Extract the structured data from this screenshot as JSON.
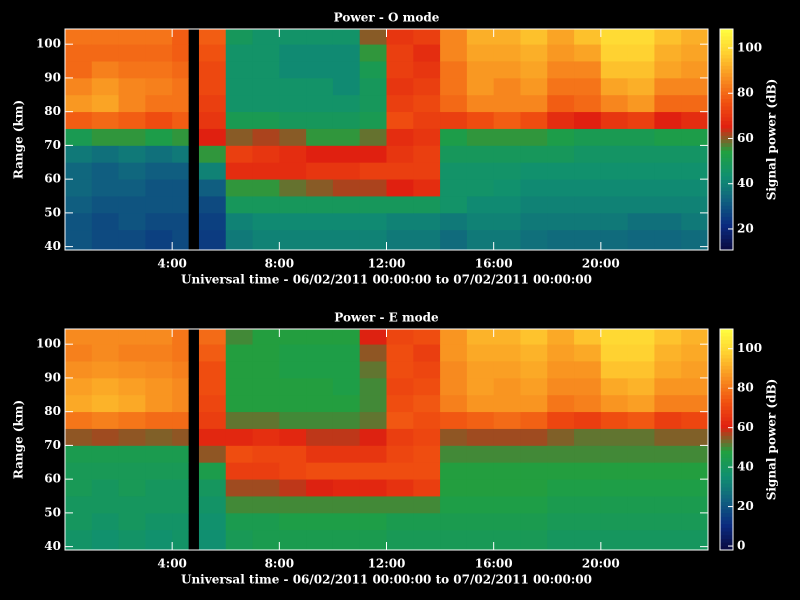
{
  "chart_data": [
    {
      "type": "heatmap",
      "title": "Power - O mode",
      "x_label": "Universal time - 06/02/2011 00:00:00 to 07/02/2011 00:00:00",
      "y_label": "Range (km)",
      "colorbar_label": "Signal power (dB)",
      "xlim": [
        0,
        24
      ],
      "ylim": [
        39,
        104.5
      ],
      "zlim": [
        10.7,
        108.4
      ],
      "xticks": [
        {
          "value": 4,
          "label": "4:00"
        },
        {
          "value": 8,
          "label": "8:00"
        },
        {
          "value": 12,
          "label": "12:00"
        },
        {
          "value": 16,
          "label": "16:00"
        },
        {
          "value": 20,
          "label": "20:00"
        }
      ],
      "yticks": [
        40,
        50,
        60,
        70,
        80,
        90,
        100
      ],
      "zticks": [
        20,
        40,
        60,
        80,
        100
      ],
      "colormap": [
        "#0a0a40",
        "#0a2a80",
        "#106080",
        "#109070",
        "#20a040",
        "#e02010",
        "#f05010",
        "#f89020",
        "#ffd030",
        "#ffff40"
      ],
      "x_edges": [
        0,
        1,
        2,
        3,
        4,
        4.6,
        5,
        6,
        7,
        8,
        9,
        10,
        11,
        12,
        13,
        14,
        15,
        16,
        17,
        18,
        19,
        20,
        21,
        22,
        23,
        24
      ],
      "y_edges": [
        39,
        45,
        50,
        55,
        60,
        65,
        70,
        75,
        80,
        85,
        90,
        95,
        100,
        104.5
      ],
      "z": [
        [
          30,
          30,
          32,
          34,
          34,
          38,
          50,
          78,
          88,
          85,
          80,
          80,
          82
        ],
        [
          28,
          28,
          30,
          32,
          32,
          36,
          55,
          80,
          90,
          88,
          84,
          80,
          82
        ],
        [
          28,
          30,
          30,
          32,
          34,
          38,
          55,
          78,
          85,
          85,
          82,
          80,
          82
        ],
        [
          26,
          28,
          30,
          30,
          32,
          36,
          52,
          75,
          82,
          84,
          82,
          80,
          82
        ],
        [
          28,
          28,
          30,
          30,
          32,
          38,
          55,
          78,
          82,
          82,
          80,
          78,
          78
        ],
        [
          null,
          null,
          null,
          null,
          null,
          null,
          null,
          null,
          null,
          null,
          null,
          null,
          null
        ],
        [
          25,
          26,
          28,
          32,
          40,
          55,
          65,
          70,
          72,
          74,
          74,
          76,
          78
        ],
        [
          38,
          40,
          48,
          55,
          68,
          72,
          60,
          50,
          45,
          45,
          45,
          45,
          48
        ],
        [
          40,
          42,
          48,
          55,
          68,
          70,
          62,
          50,
          45,
          45,
          45,
          45,
          45
        ],
        [
          40,
          42,
          48,
          58,
          68,
          68,
          60,
          48,
          45,
          45,
          42,
          42,
          45
        ],
        [
          40,
          42,
          48,
          60,
          70,
          65,
          55,
          48,
          45,
          45,
          42,
          42,
          45
        ],
        [
          40,
          42,
          48,
          62,
          70,
          65,
          55,
          48,
          45,
          42,
          42,
          42,
          45
        ],
        [
          40,
          42,
          48,
          62,
          72,
          65,
          58,
          50,
          48,
          48,
          50,
          55,
          60
        ],
        [
          38,
          40,
          48,
          65,
          72,
          70,
          68,
          75,
          72,
          70,
          72,
          72,
          70
        ],
        [
          38,
          40,
          48,
          68,
          72,
          72,
          70,
          72,
          74,
          72,
          70,
          68,
          72
        ],
        [
          35,
          38,
          45,
          45,
          45,
          48,
          52,
          72,
          80,
          82,
          82,
          85,
          85
        ],
        [
          38,
          40,
          42,
          45,
          45,
          48,
          55,
          75,
          85,
          88,
          88,
          90,
          92
        ],
        [
          38,
          40,
          42,
          44,
          45,
          48,
          55,
          78,
          85,
          85,
          88,
          90,
          92
        ],
        [
          36,
          38,
          40,
          42,
          44,
          48,
          55,
          75,
          85,
          88,
          90,
          92,
          95
        ],
        [
          35,
          38,
          40,
          42,
          44,
          48,
          52,
          68,
          78,
          82,
          85,
          88,
          90
        ],
        [
          35,
          38,
          40,
          42,
          44,
          46,
          50,
          65,
          80,
          82,
          85,
          90,
          95
        ],
        [
          35,
          38,
          40,
          42,
          44,
          46,
          50,
          70,
          85,
          90,
          95,
          98,
          100
        ],
        [
          34,
          36,
          40,
          42,
          44,
          46,
          50,
          72,
          88,
          92,
          95,
          98,
          100
        ],
        [
          34,
          36,
          40,
          42,
          44,
          46,
          52,
          65,
          80,
          85,
          90,
          92,
          95
        ],
        [
          35,
          38,
          40,
          42,
          44,
          46,
          52,
          68,
          80,
          85,
          88,
          90,
          92
        ]
      ]
    },
    {
      "type": "heatmap",
      "title": "Power - E mode",
      "x_label": "Universal time - 06/02/2011 00:00:00 to 07/02/2011 00:00:00",
      "y_label": "Range (km)",
      "colorbar_label": "Signal power (dB)",
      "xlim": [
        0,
        24
      ],
      "ylim": [
        39,
        104.5
      ],
      "zlim": [
        -2,
        110
      ],
      "xticks": [
        {
          "value": 4,
          "label": "4:00"
        },
        {
          "value": 8,
          "label": "8:00"
        },
        {
          "value": 12,
          "label": "12:00"
        },
        {
          "value": 16,
          "label": "16:00"
        },
        {
          "value": 20,
          "label": "20:00"
        }
      ],
      "yticks": [
        40,
        50,
        60,
        70,
        80,
        90,
        100
      ],
      "zticks": [
        0,
        20,
        40,
        60,
        80,
        100
      ],
      "colormap": [
        "#0a0a40",
        "#0a2a80",
        "#106080",
        "#109070",
        "#20a040",
        "#e02010",
        "#f05010",
        "#f89020",
        "#ffd030",
        "#ffff40"
      ],
      "x_edges": [
        0,
        1,
        2,
        3,
        4,
        4.6,
        5,
        6,
        7,
        8,
        9,
        10,
        11,
        12,
        13,
        14,
        15,
        16,
        17,
        18,
        19,
        20,
        21,
        22,
        23,
        24
      ],
      "y_edges": [
        39,
        45,
        50,
        55,
        60,
        65,
        70,
        75,
        80,
        85,
        90,
        95,
        100,
        104.5
      ],
      "z": [
        [
          38,
          40,
          40,
          42,
          42,
          44,
          55,
          80,
          90,
          88,
          85,
          82,
          84
        ],
        [
          36,
          38,
          40,
          40,
          42,
          44,
          56,
          82,
          92,
          90,
          86,
          84,
          84
        ],
        [
          38,
          40,
          40,
          42,
          42,
          44,
          55,
          80,
          90,
          88,
          85,
          82,
          84
        ],
        [
          36,
          38,
          40,
          40,
          42,
          44,
          54,
          78,
          86,
          86,
          84,
          82,
          84
        ],
        [
          38,
          38,
          40,
          40,
          42,
          44,
          55,
          78,
          84,
          84,
          82,
          80,
          80
        ],
        [
          null,
          null,
          null,
          null,
          null,
          null,
          null,
          null,
          null,
          null,
          null,
          null,
          null
        ],
        [
          35,
          36,
          38,
          40,
          45,
          55,
          62,
          68,
          70,
          72,
          72,
          75,
          78
        ],
        [
          42,
          44,
          50,
          56,
          68,
          72,
          62,
          52,
          48,
          48,
          48,
          48,
          50
        ],
        [
          44,
          44,
          50,
          56,
          68,
          70,
          64,
          52,
          48,
          48,
          48,
          48,
          48
        ],
        [
          44,
          46,
          50,
          58,
          70,
          70,
          62,
          50,
          48,
          48,
          46,
          46,
          48
        ],
        [
          44,
          46,
          50,
          60,
          72,
          66,
          58,
          50,
          48,
          48,
          46,
          46,
          48
        ],
        [
          44,
          46,
          50,
          62,
          72,
          66,
          58,
          50,
          48,
          46,
          46,
          46,
          48
        ],
        [
          44,
          46,
          50,
          62,
          72,
          66,
          60,
          52,
          50,
          50,
          52,
          55,
          60
        ],
        [
          42,
          44,
          50,
          65,
          72,
          70,
          68,
          74,
          72,
          70,
          72,
          72,
          70
        ],
        [
          42,
          44,
          50,
          68,
          72,
          72,
          70,
          72,
          74,
          72,
          70,
          68,
          72
        ],
        [
          42,
          44,
          46,
          48,
          48,
          50,
          55,
          74,
          82,
          84,
          84,
          86,
          86
        ],
        [
          42,
          44,
          46,
          48,
          48,
          50,
          56,
          76,
          86,
          88,
          88,
          90,
          92
        ],
        [
          42,
          44,
          46,
          48,
          48,
          50,
          56,
          78,
          86,
          86,
          88,
          90,
          92
        ],
        [
          42,
          44,
          46,
          48,
          48,
          50,
          56,
          76,
          86,
          88,
          90,
          92,
          95
        ],
        [
          40,
          42,
          44,
          46,
          48,
          50,
          54,
          70,
          80,
          84,
          86,
          88,
          90
        ],
        [
          40,
          42,
          44,
          46,
          48,
          50,
          52,
          68,
          82,
          84,
          86,
          90,
          95
        ],
        [
          40,
          42,
          44,
          46,
          48,
          50,
          52,
          72,
          86,
          90,
          95,
          98,
          100
        ],
        [
          40,
          42,
          44,
          46,
          48,
          50,
          52,
          74,
          88,
          92,
          95,
          98,
          100
        ],
        [
          40,
          42,
          44,
          46,
          48,
          50,
          54,
          68,
          82,
          86,
          90,
          92,
          95
        ],
        [
          40,
          42,
          44,
          46,
          48,
          50,
          54,
          70,
          82,
          86,
          88,
          90,
          92
        ]
      ]
    }
  ]
}
